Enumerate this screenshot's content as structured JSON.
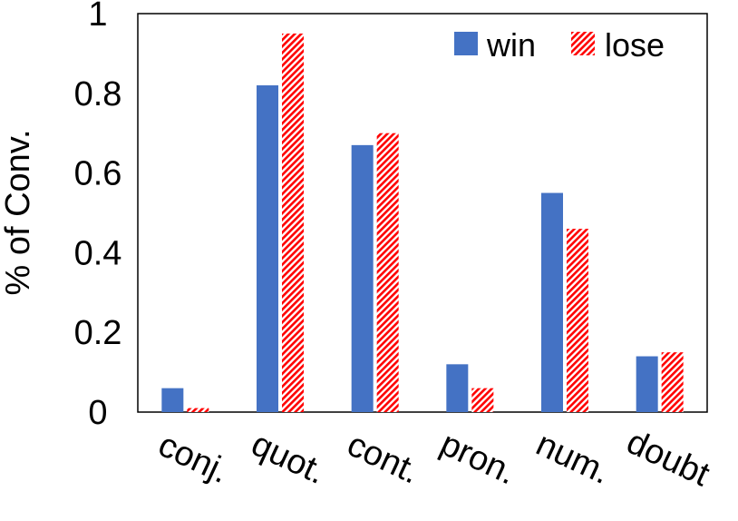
{
  "chart_data": {
    "type": "bar",
    "categories": [
      "conj.",
      "quot.",
      "cont.",
      "pron.",
      "num.",
      "doubt"
    ],
    "series": [
      {
        "name": "win",
        "values": [
          0.06,
          0.82,
          0.67,
          0.12,
          0.55,
          0.14
        ],
        "color": "#4472C4",
        "fill": "solid"
      },
      {
        "name": "lose",
        "values": [
          0.01,
          0.95,
          0.7,
          0.06,
          0.46,
          0.15
        ],
        "color": "#FF0000",
        "fill": "hatched"
      }
    ],
    "title": "",
    "xlabel": "",
    "ylabel": "% of Conv.",
    "ylim": [
      0,
      1
    ],
    "yticks": [
      "0",
      "0.2",
      "0.4",
      "0.6",
      "0.8",
      "1"
    ],
    "grid": false,
    "legend": "top-right"
  }
}
